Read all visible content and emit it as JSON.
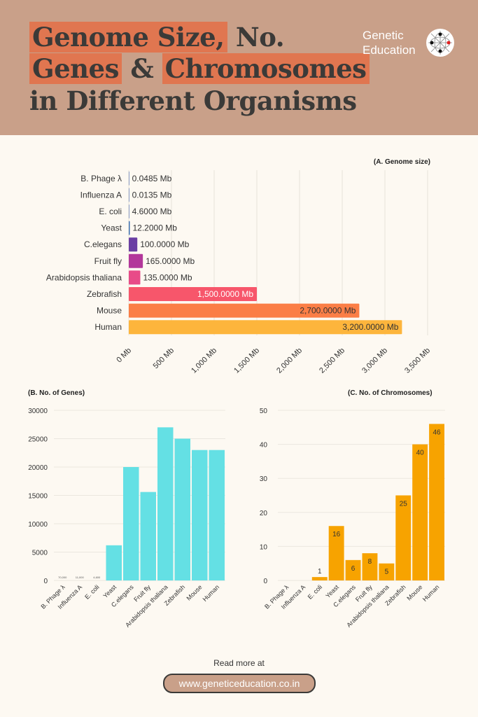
{
  "header": {
    "title_line1_a": "Genome Size,",
    "title_line1_b": "No.",
    "title_line2_a": "Genes",
    "title_line2_b": "&",
    "title_line2_c": "Chromosomes",
    "title_line3": "in Different Organisms",
    "brand_line1": "Genetic",
    "brand_line2": "Education",
    "colors": {
      "background": "#c9a089",
      "highlight": "#e07650",
      "text": "#3b3a38"
    }
  },
  "chart_data": [
    {
      "type": "bar",
      "orientation": "horizontal",
      "title": "(A. Genome size)",
      "categories": [
        "B. Phage λ",
        "Influenza A",
        "E. coli",
        "Yeast",
        "C.elegans",
        "Fruit fly",
        "Arabidopsis thaliana",
        "Zebrafish",
        "Mouse",
        "Human"
      ],
      "values": [
        0.0485,
        0.0135,
        4.6,
        12.2,
        100,
        165,
        135,
        1500,
        2700,
        3200
      ],
      "value_labels": [
        "0.0485 Mb",
        "0.0135 Mb",
        "4.6000 Mb",
        "12.2000 Mb",
        "100.0000 Mb",
        "165.0000 Mb",
        "135.0000 Mb",
        "1,500.0000 Mb",
        "2,700.0000 Mb",
        "3,200.0000 Mb"
      ],
      "colors": [
        "#3d5fa8",
        "#3d5fa8",
        "#3d5fa8",
        "#3d6fb0",
        "#6b3fa3",
        "#b3379b",
        "#e84b88",
        "#f7566b",
        "#fb7e46",
        "#fdb53c"
      ],
      "xlim": [
        0,
        3500
      ],
      "xticks": [
        "0 Mb",
        "500 Mb",
        "1,000 Mb",
        "1,500 Mb",
        "2,000 Mb",
        "2,500 Mb",
        "3,000 Mb",
        "3,500 Mb"
      ],
      "grid": true
    },
    {
      "type": "bar",
      "title": "(B. No. of Genes)",
      "categories": [
        "B. Phage λ",
        "Influenza A",
        "E. coli",
        "Yeast",
        "C.elegans",
        "Fruit fly",
        "Arabidopsis thaliana",
        "Zebrafish",
        "Mouse",
        "Human"
      ],
      "values": [
        0,
        0,
        0,
        6200,
        20000,
        15600,
        27000,
        25000,
        23000,
        23000
      ],
      "small_labels": [
        "70,000",
        "11,000",
        "4,600"
      ],
      "ylim": [
        0,
        30000
      ],
      "yticks": [
        "0",
        "5000",
        "10000",
        "15000",
        "20000",
        "25000",
        "30000"
      ],
      "color": "#64e0e4",
      "grid": true
    },
    {
      "type": "bar",
      "title": "(C. No. of Chromosomes)",
      "categories": [
        "B. Phage λ",
        "Influenza A",
        "E. coli",
        "Yeast",
        "C.elegans",
        "Fruit fly",
        "Arabidopsis thaliana",
        "Zebrafish",
        "Mouse",
        "Human"
      ],
      "values": [
        null,
        null,
        1,
        16,
        6,
        8,
        5,
        25,
        40,
        46
      ],
      "value_labels": [
        "",
        "",
        "1",
        "16",
        "6",
        "8",
        "5",
        "25",
        "40",
        "46"
      ],
      "ylim": [
        0,
        50
      ],
      "yticks": [
        "0",
        "10",
        "20",
        "30",
        "40",
        "50"
      ],
      "color": "#f7a300",
      "grid": true
    }
  ],
  "footer": {
    "read_more": "Read more at",
    "url": "www.geneticeducation.co.in"
  }
}
